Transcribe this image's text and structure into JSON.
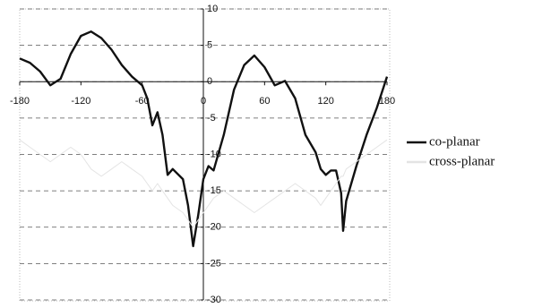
{
  "chart_data": {
    "type": "line",
    "x": [
      -180,
      -170,
      -160,
      -150,
      -140,
      -130,
      -120,
      -110,
      -100,
      -90,
      -80,
      -70,
      -60,
      -55,
      -50,
      -45,
      -40,
      -35,
      -30,
      -20,
      -15,
      -10,
      -5,
      0,
      5,
      10,
      20,
      30,
      40,
      50,
      60,
      70,
      80,
      90,
      100,
      110,
      115,
      120,
      125,
      130,
      135,
      137,
      140,
      150,
      160,
      170,
      180
    ],
    "series": [
      {
        "name": "co-planar",
        "color": "#111111",
        "values": [
          3.2,
          2.6,
          1.4,
          -0.5,
          0.4,
          3.8,
          6.3,
          6.9,
          6.0,
          4.4,
          2.3,
          0.7,
          -0.5,
          -2.3,
          -6.0,
          -4.2,
          -7.3,
          -12.8,
          -12.0,
          -13.4,
          -17.0,
          -22.6,
          -18.3,
          -13.4,
          -11.6,
          -12.2,
          -7.3,
          -1.1,
          2.3,
          3.6,
          2.0,
          -0.5,
          0.1,
          -2.3,
          -7.3,
          -9.7,
          -12.0,
          -12.8,
          -12.2,
          -12.2,
          -15.3,
          -20.5,
          -16.4,
          -11.6,
          -7.3,
          -3.6,
          0.7
        ]
      },
      {
        "name": "cross-planar",
        "color": "#e4e4e4",
        "values": [
          -8,
          -9,
          -10,
          -11,
          -10,
          -9,
          -10,
          -12,
          -13,
          -12,
          -11,
          -12,
          -13,
          -14,
          -15,
          -14,
          -15,
          -16,
          -17,
          -18,
          -19,
          -20,
          -19,
          -18,
          -17,
          -16,
          -15,
          -16,
          -17,
          -18,
          -17,
          -16,
          -15,
          -14,
          -15,
          -16,
          -17,
          -16,
          -15,
          -14,
          -13,
          -13,
          -12,
          -11,
          -10,
          -9,
          -8
        ]
      }
    ],
    "xlim": [
      -180,
      180
    ],
    "xticks": [
      -180,
      -120,
      -60,
      0,
      60,
      120,
      180
    ],
    "ylim": [
      -30,
      10
    ],
    "yticks": [
      -30,
      -25,
      -20,
      -15,
      -10,
      -5,
      0,
      5,
      10
    ],
    "grid": true,
    "legend": "right"
  }
}
